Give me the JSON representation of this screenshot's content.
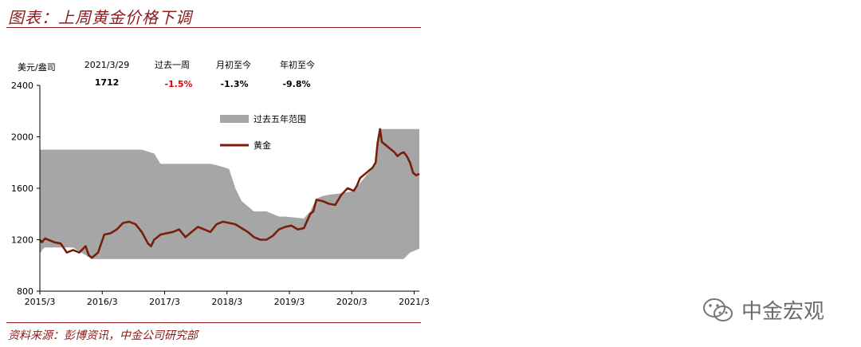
{
  "title": "图表：上周黄金价格下调",
  "source": "资料来源：彭博资讯，中金公司研究部",
  "watermark": "中金宏观",
  "colors": {
    "accent": "#8b1a1a",
    "gold_line": "#7a1e0c",
    "range_fill": "#a6a6a6"
  },
  "stats": {
    "date_label": "2021/3/29",
    "date_value": "1712",
    "week_label": "过去一周",
    "week_value": "-1.5%",
    "mtd_label": "月初至今",
    "mtd_value": "-1.3%",
    "ytd_label": "年初至今",
    "ytd_value": "-9.8%"
  },
  "chart_data": {
    "type": "area",
    "ylabel": "美元/盎司",
    "ylim": [
      800,
      2400
    ],
    "yticks": [
      800,
      1200,
      1600,
      2000,
      2400
    ],
    "xlim": [
      2015.167,
      2021.25
    ],
    "xticks": [
      {
        "x": 2015.167,
        "label": "2015/3"
      },
      {
        "x": 2016.167,
        "label": "2016/3"
      },
      {
        "x": 2017.167,
        "label": "2017/3"
      },
      {
        "x": 2018.167,
        "label": "2018/3"
      },
      {
        "x": 2019.167,
        "label": "2019/3"
      },
      {
        "x": 2020.167,
        "label": "2020/3"
      },
      {
        "x": 2021.167,
        "label": "2021/3"
      }
    ],
    "legend_position": "top-right",
    "series": [
      {
        "name": "过去五年范围",
        "kind": "range",
        "x": [
          2015.167,
          2015.22,
          2015.25,
          2015.7,
          2016.0,
          2016.8,
          2017.0,
          2017.1,
          2017.5,
          2017.9,
          2018.0,
          2018.2,
          2018.3,
          2018.4,
          2018.6,
          2018.8,
          2019.0,
          2019.1,
          2019.3,
          2019.4,
          2019.5,
          2019.6,
          2019.7,
          2019.8,
          2020.0,
          2020.2,
          2020.4,
          2020.55,
          2020.6,
          2020.8,
          2020.9,
          2021.0,
          2021.1,
          2021.25
        ],
        "upper": [
          1900,
          1900,
          1900,
          1900,
          1900,
          1900,
          1870,
          1790,
          1790,
          1790,
          1780,
          1750,
          1600,
          1500,
          1420,
          1420,
          1380,
          1380,
          1370,
          1365,
          1420,
          1520,
          1540,
          1550,
          1560,
          1580,
          1700,
          1780,
          2060,
          2060,
          2060,
          2060,
          2060,
          2060
        ],
        "lower": [
          1090,
          1130,
          1140,
          1140,
          1050,
          1050,
          1050,
          1050,
          1050,
          1050,
          1050,
          1050,
          1050,
          1050,
          1050,
          1050,
          1050,
          1050,
          1050,
          1050,
          1050,
          1050,
          1050,
          1050,
          1050,
          1050,
          1050,
          1050,
          1050,
          1050,
          1050,
          1050,
          1100,
          1130
        ]
      },
      {
        "name": "黄金",
        "kind": "line",
        "x": [
          2015.167,
          2015.2,
          2015.25,
          2015.3,
          2015.4,
          2015.5,
          2015.6,
          2015.7,
          2015.8,
          2015.9,
          2015.95,
          2016.0,
          2016.1,
          2016.2,
          2016.3,
          2016.4,
          2016.5,
          2016.6,
          2016.7,
          2016.8,
          2016.9,
          2016.95,
          2017.0,
          2017.1,
          2017.2,
          2017.3,
          2017.4,
          2017.5,
          2017.6,
          2017.7,
          2017.8,
          2017.9,
          2018.0,
          2018.1,
          2018.2,
          2018.3,
          2018.4,
          2018.5,
          2018.6,
          2018.7,
          2018.8,
          2018.9,
          2019.0,
          2019.1,
          2019.2,
          2019.3,
          2019.4,
          2019.5,
          2019.55,
          2019.6,
          2019.7,
          2019.8,
          2019.9,
          2020.0,
          2020.1,
          2020.2,
          2020.25,
          2020.3,
          2020.4,
          2020.45,
          2020.5,
          2020.55,
          2020.58,
          2020.62,
          2020.65,
          2020.7,
          2020.75,
          2020.8,
          2020.85,
          2020.9,
          2020.95,
          2021.0,
          2021.05,
          2021.1,
          2021.15,
          2021.2,
          2021.25
        ],
        "y": [
          1200,
          1180,
          1210,
          1200,
          1180,
          1170,
          1100,
          1120,
          1100,
          1150,
          1080,
          1060,
          1100,
          1240,
          1250,
          1280,
          1330,
          1340,
          1320,
          1260,
          1170,
          1150,
          1200,
          1240,
          1250,
          1260,
          1280,
          1220,
          1260,
          1300,
          1280,
          1260,
          1320,
          1340,
          1330,
          1320,
          1290,
          1260,
          1220,
          1200,
          1200,
          1230,
          1280,
          1300,
          1310,
          1280,
          1290,
          1400,
          1420,
          1510,
          1500,
          1480,
          1470,
          1550,
          1600,
          1580,
          1620,
          1680,
          1720,
          1740,
          1760,
          1800,
          1950,
          2060,
          1960,
          1940,
          1920,
          1900,
          1880,
          1850,
          1870,
          1880,
          1850,
          1800,
          1720,
          1700,
          1712
        ]
      }
    ]
  }
}
